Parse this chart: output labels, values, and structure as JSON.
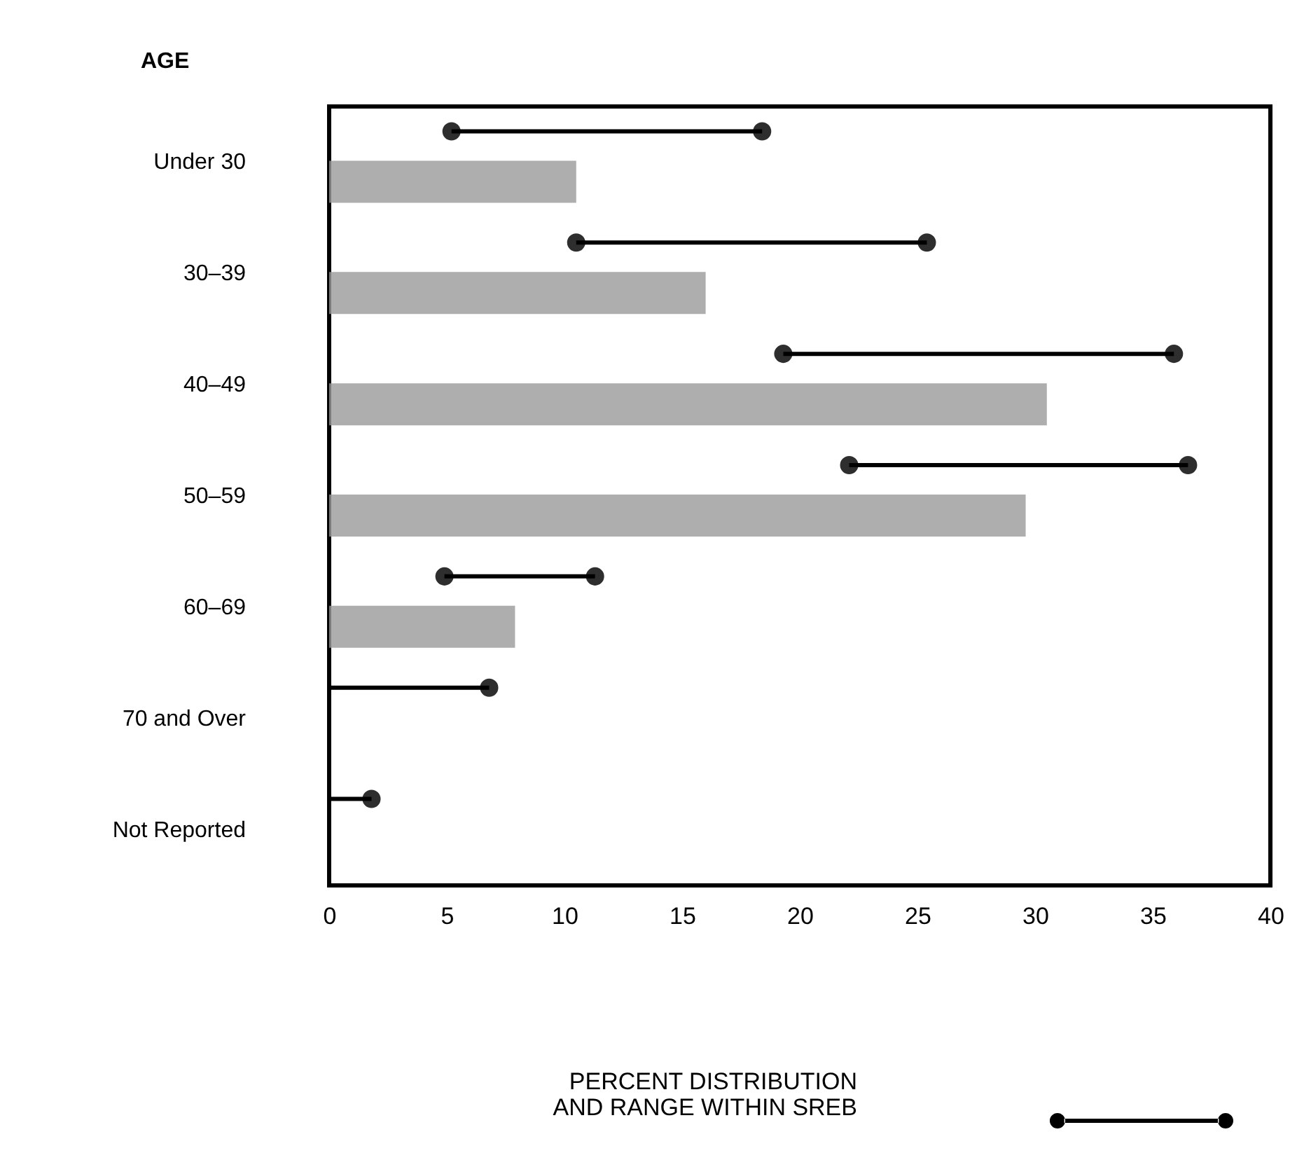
{
  "chart_data": {
    "type": "bar",
    "orientation": "horizontal",
    "ylabel": "AGE",
    "categories": [
      "Under 30",
      "30–39",
      "40–49",
      "50–59",
      "60–69",
      "70 and Over",
      "Not Reported"
    ],
    "series": [
      {
        "color": "#9a9a9a",
        "values": [
          10.5,
          16,
          30.5,
          29.6,
          7.9,
          null,
          null
        ]
      },
      {
        "name": "PERCENT DISTRIBUTION\nAND RANGE WITHIN SREB",
        "color": "#000000",
        "marker": "circle",
        "values": [
          13.2,
          14.9,
          16.6,
          14.4,
          6.4,
          6.8,
          1.8
        ],
        "base": [
          5.2,
          10.5,
          19.3,
          22.1,
          4.9,
          0,
          0
        ]
      }
    ],
    "xlim": [
      0,
      40
    ],
    "xticks": [
      0,
      5,
      10,
      15,
      20,
      25,
      30,
      35,
      40
    ],
    "grid": false,
    "legend": "bottom"
  }
}
